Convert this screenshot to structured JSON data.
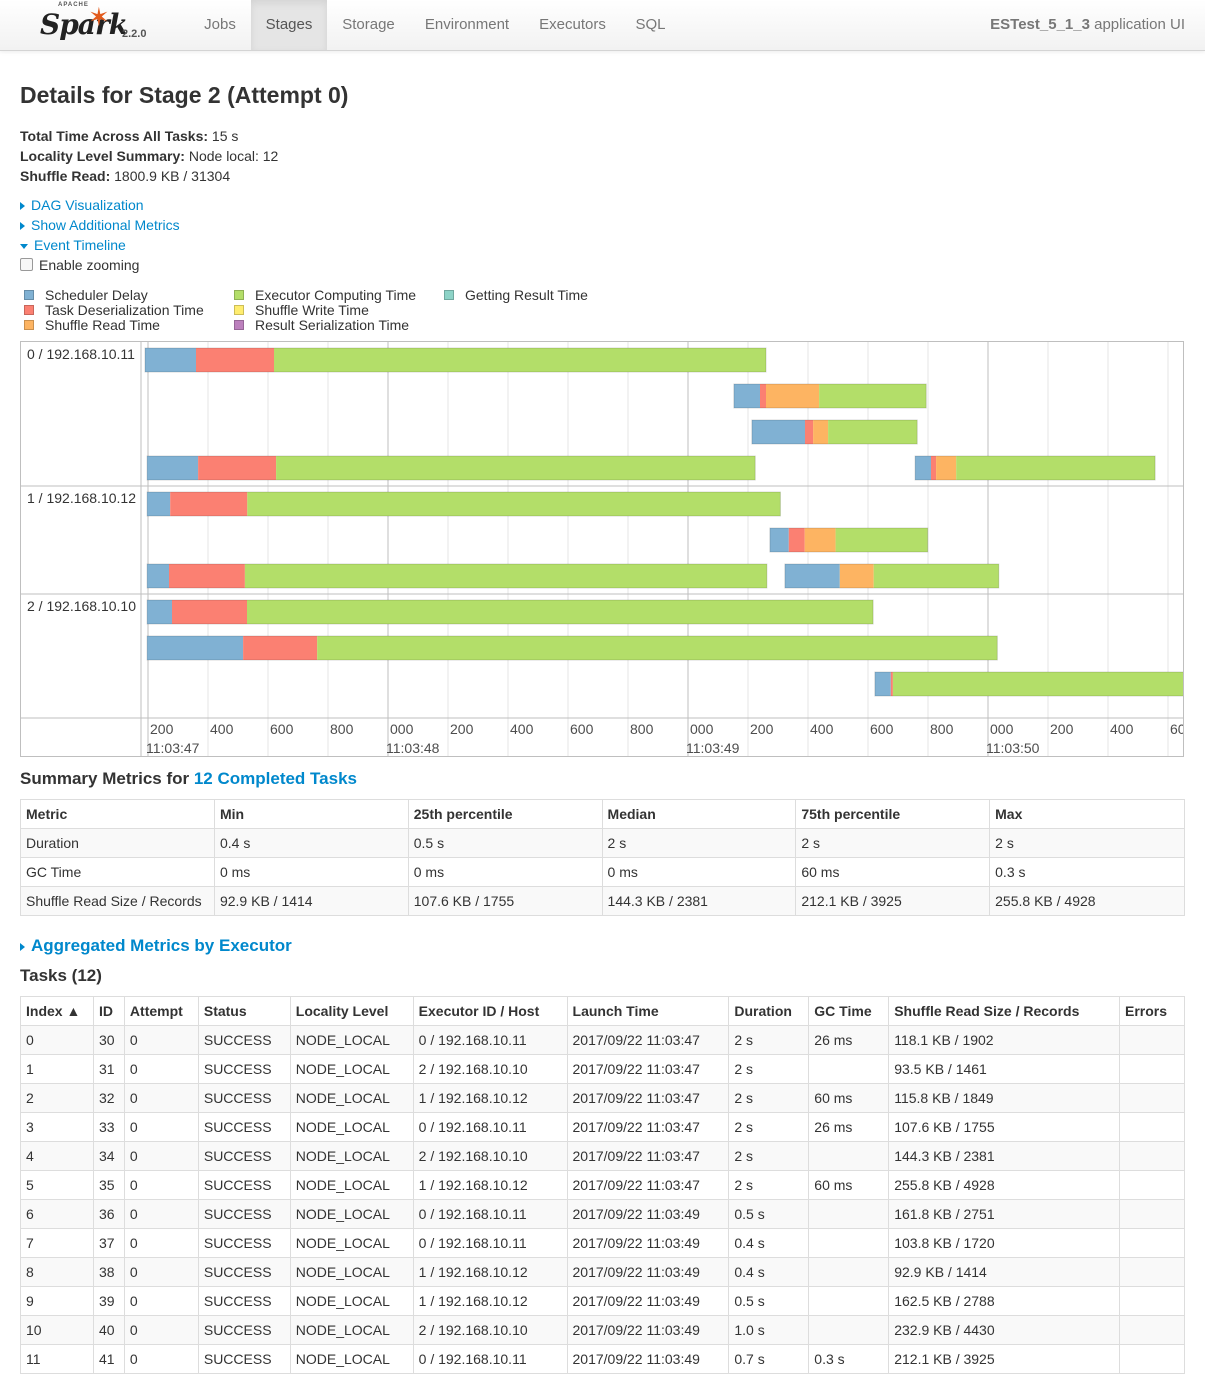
{
  "nav": {
    "brand_apache": "APACHE",
    "brand_name": "Spark",
    "version": "2.2.0",
    "tabs": [
      "Jobs",
      "Stages",
      "Storage",
      "Environment",
      "Executors",
      "SQL"
    ],
    "active_tab": "Stages",
    "app_name": "ESTest_5_1_3",
    "app_suffix": " application UI"
  },
  "stage": {
    "title": "Details for Stage 2 (Attempt 0)",
    "total_time_label": "Total Time Across All Tasks:",
    "total_time": " 15 s",
    "locality_label": "Locality Level Summary:",
    "locality": " Node local: 12",
    "shuffle_label": "Shuffle Read:",
    "shuffle": " 1800.9 KB / 31304"
  },
  "links": {
    "dag": "DAG Visualization",
    "metrics": "Show Additional Metrics",
    "timeline": "Event Timeline",
    "zoom": "Enable zooming"
  },
  "legend": [
    {
      "label": "Scheduler Delay",
      "color": "#80b1d3"
    },
    {
      "label": "Task Deserialization Time",
      "color": "#fb8072"
    },
    {
      "label": "Shuffle Read Time",
      "color": "#fdb462"
    },
    {
      "label": "Executor Computing Time",
      "color": "#b3de69"
    },
    {
      "label": "Shuffle Write Time",
      "color": "#ffed6f"
    },
    {
      "label": "Result Serialization Time",
      "color": "#bc80bd"
    },
    {
      "label": "Getting Result Time",
      "color": "#8dd3c7"
    }
  ],
  "timeline": {
    "groups": [
      "0 / 192.168.10.11",
      "1 / 192.168.10.12",
      "2 / 192.168.10.10"
    ],
    "tick_labels": [
      "200",
      "400",
      "600",
      "800",
      "000",
      "200",
      "400",
      "600",
      "800",
      "000",
      "200",
      "400",
      "600",
      "800",
      "000",
      "200",
      "400",
      "60"
    ],
    "major_labels": [
      "11:03:47",
      "11:03:48",
      "11:03:49",
      "11:03:50"
    ],
    "tasks": [
      {
        "group": 0,
        "lane": 0,
        "start_ms": 0,
        "segments": [
          170,
          260,
          1640
        ]
      },
      {
        "group": 0,
        "lane": 1,
        "start_ms": 1963,
        "segments": [
          87,
          20,
          177,
          357
        ]
      },
      {
        "group": 0,
        "lane": 2,
        "start_ms": 2023,
        "segments": [
          177,
          27,
          50,
          297
        ]
      },
      {
        "group": 0,
        "lane": 3,
        "start_ms": 7,
        "segments": [
          170,
          260,
          1597
        ]
      },
      {
        "group": 0,
        "lane": 3,
        "start_ms": 2567,
        "segments": [
          53,
          17,
          67,
          663
        ]
      },
      {
        "group": 1,
        "lane": 0,
        "start_ms": 7,
        "segments": [
          77,
          257,
          1777
        ]
      },
      {
        "group": 1,
        "lane": 1,
        "start_ms": 2083,
        "segments": [
          63,
          53,
          103,
          307
        ]
      },
      {
        "group": 1,
        "lane": 2,
        "start_ms": 7,
        "segments": [
          73,
          253,
          1740
        ]
      },
      {
        "group": 1,
        "lane": 2,
        "start_ms": 2133,
        "segments": [
          183,
          113,
          417
        ]
      },
      {
        "group": 2,
        "lane": 0,
        "start_ms": 7,
        "segments": [
          83,
          250,
          2087
        ]
      },
      {
        "group": 2,
        "lane": 1,
        "start_ms": 7,
        "segments": [
          320,
          247,
          2267
        ]
      },
      {
        "group": 2,
        "lane": 2,
        "start_ms": 2433,
        "segments": [
          53,
          7,
          1000
        ]
      }
    ]
  },
  "summary": {
    "heading": "Summary Metrics for ",
    "link": "12 Completed Tasks",
    "headers": [
      "Metric",
      "Min",
      "25th percentile",
      "Median",
      "75th percentile",
      "Max"
    ],
    "rows": [
      [
        "Duration",
        "0.4 s",
        "0.5 s",
        "2 s",
        "2 s",
        "2 s"
      ],
      [
        "GC Time",
        "0 ms",
        "0 ms",
        "0 ms",
        "60 ms",
        "0.3 s"
      ],
      [
        "Shuffle Read Size / Records",
        "92.9 KB / 1414",
        "107.6 KB / 1755",
        "144.3 KB / 2381",
        "212.1 KB / 3925",
        "255.8 KB / 4928"
      ]
    ]
  },
  "aggregated": "Aggregated Metrics by Executor",
  "tasks": {
    "heading": "Tasks (12)",
    "headers": [
      "Index ▲",
      "ID",
      "Attempt",
      "Status",
      "Locality Level",
      "Executor ID / Host",
      "Launch Time",
      "Duration",
      "GC Time",
      "Shuffle Read Size / Records",
      "Errors"
    ],
    "rows": [
      [
        "0",
        "30",
        "0",
        "SUCCESS",
        "NODE_LOCAL",
        "0 / 192.168.10.11",
        "2017/09/22 11:03:47",
        "2 s",
        "26 ms",
        "118.1 KB / 1902",
        ""
      ],
      [
        "1",
        "31",
        "0",
        "SUCCESS",
        "NODE_LOCAL",
        "2 / 192.168.10.10",
        "2017/09/22 11:03:47",
        "2 s",
        "",
        "93.5 KB / 1461",
        ""
      ],
      [
        "2",
        "32",
        "0",
        "SUCCESS",
        "NODE_LOCAL",
        "1 / 192.168.10.12",
        "2017/09/22 11:03:47",
        "2 s",
        "60 ms",
        "115.8 KB / 1849",
        ""
      ],
      [
        "3",
        "33",
        "0",
        "SUCCESS",
        "NODE_LOCAL",
        "0 / 192.168.10.11",
        "2017/09/22 11:03:47",
        "2 s",
        "26 ms",
        "107.6 KB / 1755",
        ""
      ],
      [
        "4",
        "34",
        "0",
        "SUCCESS",
        "NODE_LOCAL",
        "2 / 192.168.10.10",
        "2017/09/22 11:03:47",
        "2 s",
        "",
        "144.3 KB / 2381",
        ""
      ],
      [
        "5",
        "35",
        "0",
        "SUCCESS",
        "NODE_LOCAL",
        "1 / 192.168.10.12",
        "2017/09/22 11:03:47",
        "2 s",
        "60 ms",
        "255.8 KB / 4928",
        ""
      ],
      [
        "6",
        "36",
        "0",
        "SUCCESS",
        "NODE_LOCAL",
        "0 / 192.168.10.11",
        "2017/09/22 11:03:49",
        "0.5 s",
        "",
        "161.8 KB / 2751",
        ""
      ],
      [
        "7",
        "37",
        "0",
        "SUCCESS",
        "NODE_LOCAL",
        "0 / 192.168.10.11",
        "2017/09/22 11:03:49",
        "0.4 s",
        "",
        "103.8 KB / 1720",
        ""
      ],
      [
        "8",
        "38",
        "0",
        "SUCCESS",
        "NODE_LOCAL",
        "1 / 192.168.10.12",
        "2017/09/22 11:03:49",
        "0.4 s",
        "",
        "92.9 KB / 1414",
        ""
      ],
      [
        "9",
        "39",
        "0",
        "SUCCESS",
        "NODE_LOCAL",
        "1 / 192.168.10.12",
        "2017/09/22 11:03:49",
        "0.5 s",
        "",
        "162.5 KB / 2788",
        ""
      ],
      [
        "10",
        "40",
        "0",
        "SUCCESS",
        "NODE_LOCAL",
        "2 / 192.168.10.10",
        "2017/09/22 11:03:49",
        "1.0 s",
        "",
        "232.9 KB / 4430",
        ""
      ],
      [
        "11",
        "41",
        "0",
        "SUCCESS",
        "NODE_LOCAL",
        "0 / 192.168.10.11",
        "2017/09/22 11:03:49",
        "0.7 s",
        "0.3 s",
        "212.1 KB / 3925",
        ""
      ]
    ]
  }
}
